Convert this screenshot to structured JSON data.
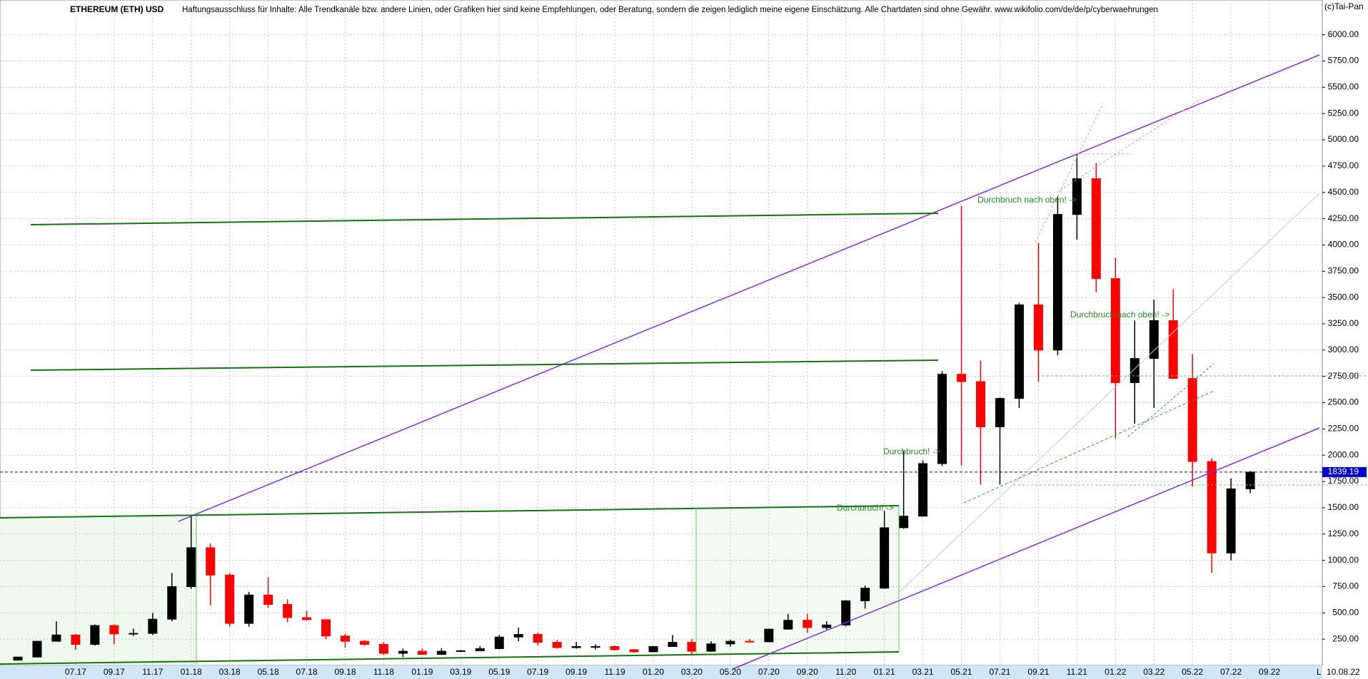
{
  "chart_data": {
    "type": "candlestick",
    "title": "ETHEREUM (ETH) USD",
    "subtitle": "Haftungsausschluss für Inhalte: Alle Trendkanäle bzw. andere Linien, oder Grafiken hier sind keine Empfehlungen, oder Beratung, sondern die zeigen lediglich meine eigene Einschätzung. Alle Chartdaten sind ohne Gewähr.  www.wikifolio.com/de/de/p/cyberwaehrungen",
    "copyright": "(c)Tai-Pan",
    "date_label": "10.08.22",
    "corner_label": "L",
    "annotations": [
      "Durchbruch nach oben! ->",
      "Durchbruch nach oben! ->",
      "Durchbruch! ->",
      "Durchbruch! ->"
    ],
    "categories": [
      null,
      null,
      null,
      "07.17",
      null,
      "09.17",
      null,
      "11.17",
      null,
      "01.18",
      null,
      "03.18",
      null,
      "05.18",
      null,
      "07.18",
      null,
      "09.18",
      null,
      "11.18",
      null,
      "01.19",
      null,
      "03.19",
      null,
      "05.19",
      null,
      "07.19",
      null,
      "09.19",
      null,
      "11.19",
      null,
      "01.20",
      null,
      "03.20",
      null,
      "05.20",
      null,
      "07.20",
      null,
      "09.20",
      null,
      "11.20",
      null,
      "01.21",
      null,
      "03.21",
      null,
      "05.21",
      null,
      "07.21",
      null,
      "09.21",
      null,
      "11.21",
      null,
      "01.22",
      null,
      "03.22",
      null,
      "05.22",
      null,
      "07.22",
      null,
      "09.22"
    ],
    "open": [
      50,
      80,
      230,
      290,
      200,
      380,
      300,
      305,
      440,
      750,
      1120,
      860,
      400,
      670,
      580,
      455,
      435,
      280,
      230,
      200,
      115,
      135,
      105,
      135,
      140,
      160,
      270,
      295,
      220,
      170,
      180,
      180,
      150,
      130,
      180,
      220,
      135,
      205,
      230,
      225,
      345,
      430,
      360,
      385,
      615,
      735,
      1310,
      1420,
      1920,
      2770,
      2700,
      2270,
      2540,
      3430,
      3000,
      4290,
      4630,
      3680,
      2690,
      2920,
      3280,
      2730,
      1940,
      1070,
      1680,
      null
    ],
    "high": [
      80,
      230,
      420,
      300,
      390,
      390,
      350,
      500,
      880,
      1420,
      1160,
      880,
      700,
      840,
      630,
      520,
      440,
      300,
      240,
      220,
      160,
      160,
      165,
      145,
      185,
      290,
      360,
      310,
      240,
      225,
      200,
      190,
      155,
      185,
      290,
      250,
      230,
      245,
      250,
      350,
      490,
      490,
      420,
      620,
      760,
      1470,
      2040,
      1950,
      2800,
      4370,
      2900,
      2550,
      3450,
      4020,
      4460,
      4870,
      4780,
      3880,
      3280,
      3480,
      3580,
      2960,
      1970,
      1780,
      1850,
      null
    ],
    "low": [
      48,
      80,
      230,
      150,
      190,
      200,
      280,
      290,
      420,
      730,
      570,
      370,
      370,
      550,
      410,
      430,
      250,
      170,
      190,
      100,
      80,
      100,
      100,
      130,
      140,
      155,
      230,
      190,
      160,
      160,
      150,
      140,
      120,
      125,
      180,
      95,
      130,
      180,
      215,
      225,
      340,
      310,
      340,
      370,
      540,
      730,
      1300,
      1440,
      1900,
      1900,
      1720,
      1720,
      2450,
      2700,
      2950,
      4050,
      3550,
      2160,
      2300,
      2450,
      2730,
      1700,
      880,
      1000,
      1640,
      null
    ],
    "close": [
      80,
      230,
      290,
      200,
      380,
      300,
      305,
      440,
      750,
      1120,
      860,
      400,
      670,
      580,
      455,
      435,
      280,
      230,
      200,
      115,
      135,
      105,
      135,
      140,
      160,
      270,
      295,
      220,
      170,
      180,
      180,
      150,
      130,
      180,
      220,
      135,
      205,
      230,
      225,
      345,
      430,
      360,
      385,
      615,
      735,
      1310,
      1420,
      1920,
      2770,
      2700,
      2270,
      2540,
      3430,
      3000,
      4290,
      4630,
      3680,
      2690,
      2920,
      3280,
      2730,
      1940,
      1070,
      1680,
      1839.19,
      null
    ],
    "up_color": "#000000",
    "down_color": "#ff0000",
    "current_price": 1839.19,
    "current_color": "#0000cc",
    "ylim": [
      0,
      6330
    ],
    "yticks": [
      {
        "value": 250,
        "label": "250.00"
      },
      {
        "value": 500,
        "label": "500.00"
      },
      {
        "value": 750,
        "label": "750.00"
      },
      {
        "value": 1000,
        "label": "1000.00"
      },
      {
        "value": 1250,
        "label": "1250.00"
      },
      {
        "value": 1500,
        "label": "1500.00"
      },
      {
        "value": 1750,
        "label": "1750.00"
      },
      {
        "value": 2000,
        "label": "2000.00"
      },
      {
        "value": 2250,
        "label": "2250.00"
      },
      {
        "value": 2500,
        "label": "2500.00"
      },
      {
        "value": 2750,
        "label": "2750.00"
      },
      {
        "value": 3000,
        "label": "3000.00"
      },
      {
        "value": 3250,
        "label": "3250.00"
      },
      {
        "value": 3500,
        "label": "3500.00"
      },
      {
        "value": 3750,
        "label": "3750.00"
      },
      {
        "value": 4000,
        "label": "4000.00"
      },
      {
        "value": 4250,
        "label": "4250.00"
      },
      {
        "value": 4500,
        "label": "4500.00"
      },
      {
        "value": 4750,
        "label": "4750.00"
      },
      {
        "value": 5000,
        "label": "5000.00"
      },
      {
        "value": 5250,
        "label": "5250.00"
      },
      {
        "value": 5500,
        "label": "5500.00"
      },
      {
        "value": 5750,
        "label": "5750.00"
      },
      {
        "value": 6000,
        "label": "6000.00"
      }
    ],
    "grid": true
  }
}
